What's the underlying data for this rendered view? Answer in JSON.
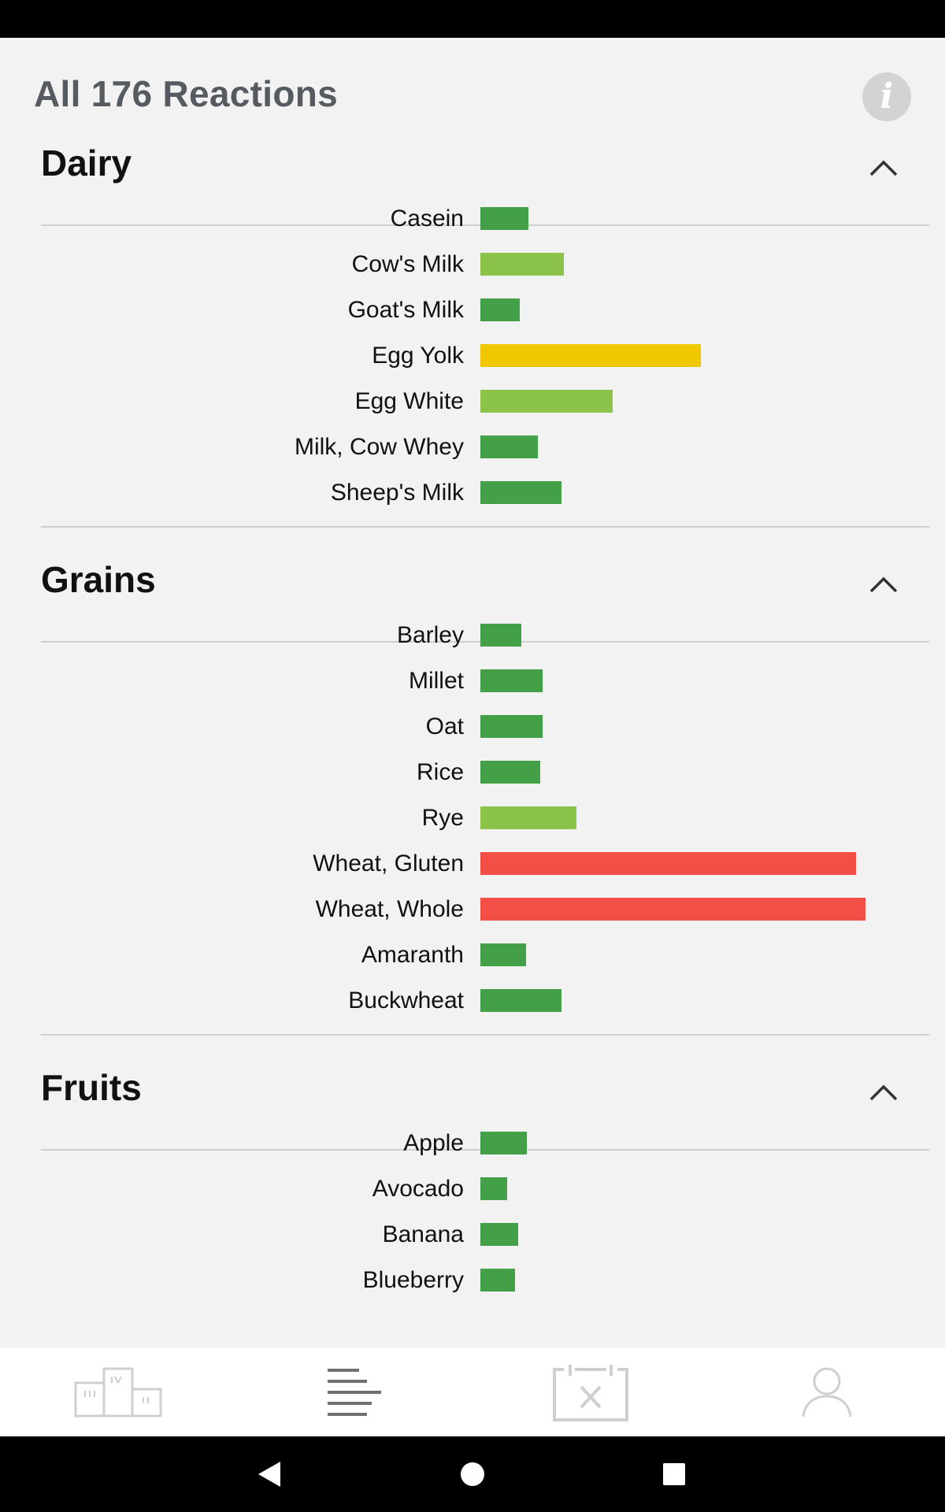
{
  "header": {
    "title": "All 176 Reactions"
  },
  "colors": {
    "green": "#43a047",
    "light_green": "#8bc34a",
    "yellow": "#f0c800",
    "red": "#f44f46"
  },
  "sections": [
    {
      "title": "Dairy",
      "items": [
        {
          "label": "Casein",
          "level": 61,
          "color": "#43a047"
        },
        {
          "label": "Cow's Milk",
          "level": 106,
          "color": "#8bc34a"
        },
        {
          "label": "Goat's Milk",
          "level": 50,
          "color": "#43a047"
        },
        {
          "label": "Egg Yolk",
          "level": 280,
          "color": "#f0c800"
        },
        {
          "label": "Egg White",
          "level": 168,
          "color": "#8bc34a"
        },
        {
          "label": "Milk, Cow Whey",
          "level": 73,
          "color": "#43a047"
        },
        {
          "label": "Sheep's Milk",
          "level": 103,
          "color": "#43a047"
        }
      ]
    },
    {
      "title": "Grains",
      "items": [
        {
          "label": "Barley",
          "level": 52,
          "color": "#43a047"
        },
        {
          "label": "Millet",
          "level": 79,
          "color": "#43a047"
        },
        {
          "label": "Oat",
          "level": 79,
          "color": "#43a047"
        },
        {
          "label": "Rice",
          "level": 76,
          "color": "#43a047"
        },
        {
          "label": "Rye",
          "level": 122,
          "color": "#8bc34a"
        },
        {
          "label": "Wheat, Gluten",
          "level": 477,
          "color": "#f44f46"
        },
        {
          "label": "Wheat, Whole",
          "level": 489,
          "color": "#f44f46"
        },
        {
          "label": "Amaranth",
          "level": 58,
          "color": "#43a047"
        },
        {
          "label": "Buckwheat",
          "level": 103,
          "color": "#43a047"
        }
      ]
    },
    {
      "title": "Fruits",
      "items": [
        {
          "label": "Apple",
          "level": 59,
          "color": "#43a047"
        },
        {
          "label": "Avocado",
          "level": 34,
          "color": "#43a047"
        },
        {
          "label": "Banana",
          "level": 48,
          "color": "#43a047"
        },
        {
          "label": "Blueberry",
          "level": 44,
          "color": "#43a047"
        }
      ]
    }
  ],
  "icons": {
    "info": "info-icon",
    "collapse": "chevron-up-icon",
    "nav": [
      "podium-icon",
      "list-icon",
      "calendar-food-icon",
      "profile-icon"
    ],
    "system": [
      "back-icon",
      "home-icon",
      "recents-icon"
    ]
  }
}
